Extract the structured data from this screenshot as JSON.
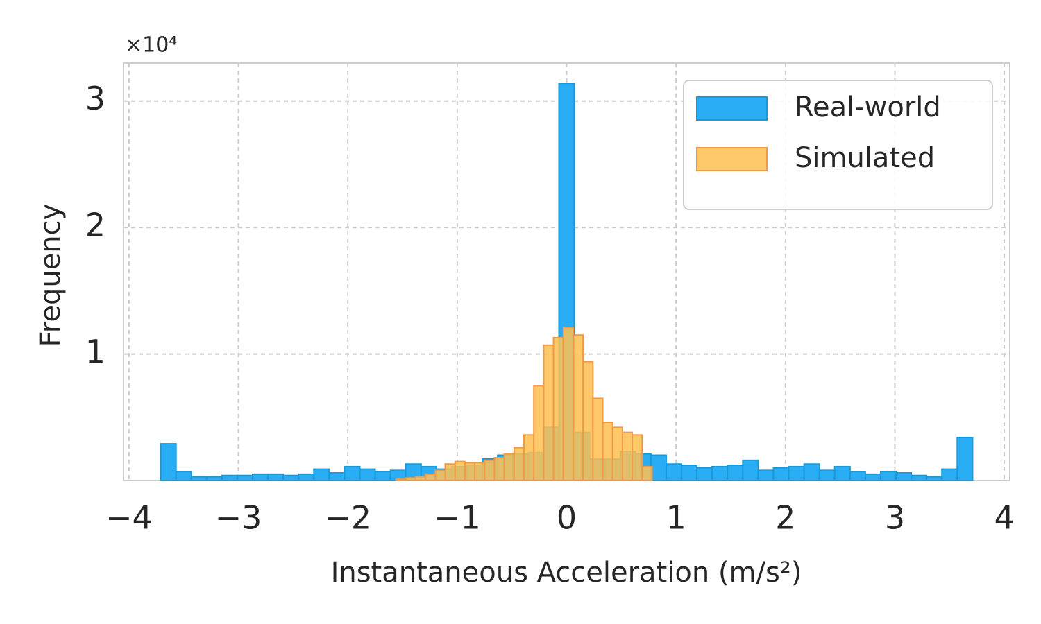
{
  "chart_data": {
    "type": "histogram",
    "xlabel": "Instantaneous Acceleration (m/s²)",
    "ylabel": "Frequency",
    "y_offset_label": "×10⁴",
    "xlim": [
      -4.05,
      4.05
    ],
    "ylim": [
      0,
      3.3
    ],
    "xticks": [
      {
        "value": -4,
        "label": "−4"
      },
      {
        "value": -3,
        "label": "−3"
      },
      {
        "value": -2,
        "label": "−2"
      },
      {
        "value": -1,
        "label": "−1"
      },
      0,
      1,
      2,
      3,
      4
    ],
    "yticks": [
      1,
      2,
      3
    ],
    "grid": true,
    "legend": "upper right",
    "series": [
      {
        "name": "Real-world",
        "color": "#29aef5",
        "edgecolor": "#1a98d8",
        "opacity": 1,
        "bins": [
          -3.71,
          -3.57,
          -3.43,
          -3.29,
          -3.15,
          -3.01,
          -2.87,
          -2.73,
          -2.59,
          -2.45,
          -2.31,
          -2.17,
          -2.03,
          -1.89,
          -1.75,
          -1.61,
          -1.47,
          -1.33,
          -1.19,
          -1.05,
          -0.91,
          -0.77,
          -0.63,
          -0.49,
          -0.35,
          -0.21,
          -0.07,
          0.07,
          0.21,
          0.35,
          0.49,
          0.63,
          0.77,
          0.91,
          1.05,
          1.19,
          1.33,
          1.47,
          1.61,
          1.75,
          1.89,
          2.03,
          2.17,
          2.31,
          2.45,
          2.59,
          2.73,
          2.87,
          3.01,
          3.15,
          3.29,
          3.43,
          3.57,
          3.71
        ],
        "values": [
          0.29,
          0.07,
          0.03,
          0.03,
          0.04,
          0.04,
          0.05,
          0.05,
          0.04,
          0.05,
          0.09,
          0.06,
          0.11,
          0.09,
          0.07,
          0.08,
          0.13,
          0.11,
          0.09,
          0.11,
          0.12,
          0.17,
          0.2,
          0.21,
          0.22,
          0.42,
          3.14,
          0.38,
          0.17,
          0.17,
          0.23,
          0.21,
          0.2,
          0.13,
          0.12,
          0.1,
          0.11,
          0.12,
          0.16,
          0.08,
          0.1,
          0.11,
          0.13,
          0.08,
          0.11,
          0.07,
          0.05,
          0.07,
          0.06,
          0.04,
          0.03,
          0.09,
          0.34
        ]
      },
      {
        "name": "Simulated",
        "color": "#ffbf50",
        "edgecolor": "#f09a45",
        "opacity": 0.85,
        "bins": [
          -1.56,
          -1.47,
          -1.38,
          -1.29,
          -1.2,
          -1.11,
          -1.02,
          -0.93,
          -0.84,
          -0.75,
          -0.66,
          -0.57,
          -0.48,
          -0.39,
          -0.3,
          -0.21,
          -0.12,
          -0.03,
          0.06,
          0.15,
          0.24,
          0.33,
          0.42,
          0.51,
          0.6,
          0.69,
          0.78
        ],
        "values": [
          0.01,
          0.02,
          0.03,
          0.05,
          0.08,
          0.13,
          0.15,
          0.14,
          0.14,
          0.16,
          0.18,
          0.21,
          0.26,
          0.36,
          0.75,
          1.07,
          1.13,
          1.21,
          1.15,
          0.94,
          0.65,
          0.46,
          0.42,
          0.38,
          0.36,
          0.11
        ]
      }
    ]
  }
}
